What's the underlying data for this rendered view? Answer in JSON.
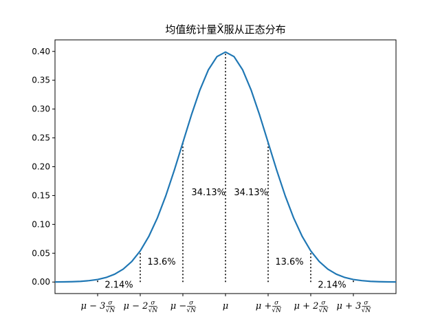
{
  "chart_data": {
    "type": "line",
    "title": "均值统计量X̄服从正态分布",
    "xlabel": "",
    "ylabel": "",
    "xlim": [
      -4,
      4
    ],
    "ylim": [
      -0.02,
      0.42
    ],
    "grid": false,
    "series": [
      {
        "color": "#1f77b4",
        "x": [
          -4.0,
          -3.8,
          -3.6,
          -3.4,
          -3.2,
          -3.0,
          -2.8,
          -2.6,
          -2.4,
          -2.2,
          -2.0,
          -1.8,
          -1.6,
          -1.4,
          -1.2,
          -1.0,
          -0.8,
          -0.6,
          -0.4,
          -0.2,
          0.0,
          0.2,
          0.4,
          0.6,
          0.8,
          1.0,
          1.2,
          1.4,
          1.6,
          1.8,
          2.0,
          2.2,
          2.4,
          2.6,
          2.8,
          3.0,
          3.2,
          3.4,
          3.6,
          3.8,
          4.0
        ],
        "y": [
          0.0001,
          0.0003,
          0.0006,
          0.0012,
          0.0024,
          0.0044,
          0.0079,
          0.0136,
          0.0224,
          0.0355,
          0.054,
          0.079,
          0.1109,
          0.1497,
          0.1942,
          0.242,
          0.2897,
          0.3332,
          0.3683,
          0.391,
          0.3989,
          0.391,
          0.3683,
          0.3332,
          0.2897,
          0.242,
          0.1942,
          0.1497,
          0.1109,
          0.079,
          0.054,
          0.0355,
          0.0224,
          0.0136,
          0.0079,
          0.0044,
          0.0024,
          0.0012,
          0.0006,
          0.0003,
          0.0001
        ]
      }
    ],
    "vlines": [
      {
        "x": -3,
        "ymax": 0.0044
      },
      {
        "x": -2,
        "ymax": 0.054
      },
      {
        "x": -1,
        "ymax": 0.242
      },
      {
        "x": 0,
        "ymax": 0.3989
      },
      {
        "x": 1,
        "ymax": 0.242
      },
      {
        "x": 2,
        "ymax": 0.054
      },
      {
        "x": 3,
        "ymax": 0.0044
      }
    ],
    "yticks": [
      0.0,
      0.05,
      0.1,
      0.15,
      0.2,
      0.25,
      0.3,
      0.35,
      0.4
    ],
    "ytick_labels": [
      "0.00",
      "0.05",
      "0.10",
      "0.15",
      "0.20",
      "0.25",
      "0.30",
      "0.35",
      "0.40"
    ],
    "xticks": [
      {
        "x": -3,
        "pre": "μ − 3",
        "frac": true
      },
      {
        "x": -2,
        "pre": "μ − 2",
        "frac": true
      },
      {
        "x": -1,
        "pre": "μ − ",
        "frac": true
      },
      {
        "x": 0,
        "pre": "μ",
        "frac": false
      },
      {
        "x": 1,
        "pre": "μ + ",
        "frac": true
      },
      {
        "x": 2,
        "pre": "μ + 2",
        "frac": true
      },
      {
        "x": 3,
        "pre": "μ + 3",
        "frac": true
      }
    ],
    "tick_fraction": {
      "num": "σ",
      "den": "√N"
    },
    "annotations": [
      {
        "text": "2.14%",
        "x": -2.5,
        "y": -0.005
      },
      {
        "text": "13.6%",
        "x": -1.5,
        "y": 0.035
      },
      {
        "text": "34.13%",
        "x": -0.4,
        "y": 0.155
      },
      {
        "text": "34.13%",
        "x": 0.6,
        "y": 0.155
      },
      {
        "text": "13.6%",
        "x": 1.5,
        "y": 0.035
      },
      {
        "text": "2.14%",
        "x": 2.5,
        "y": -0.005
      }
    ]
  }
}
